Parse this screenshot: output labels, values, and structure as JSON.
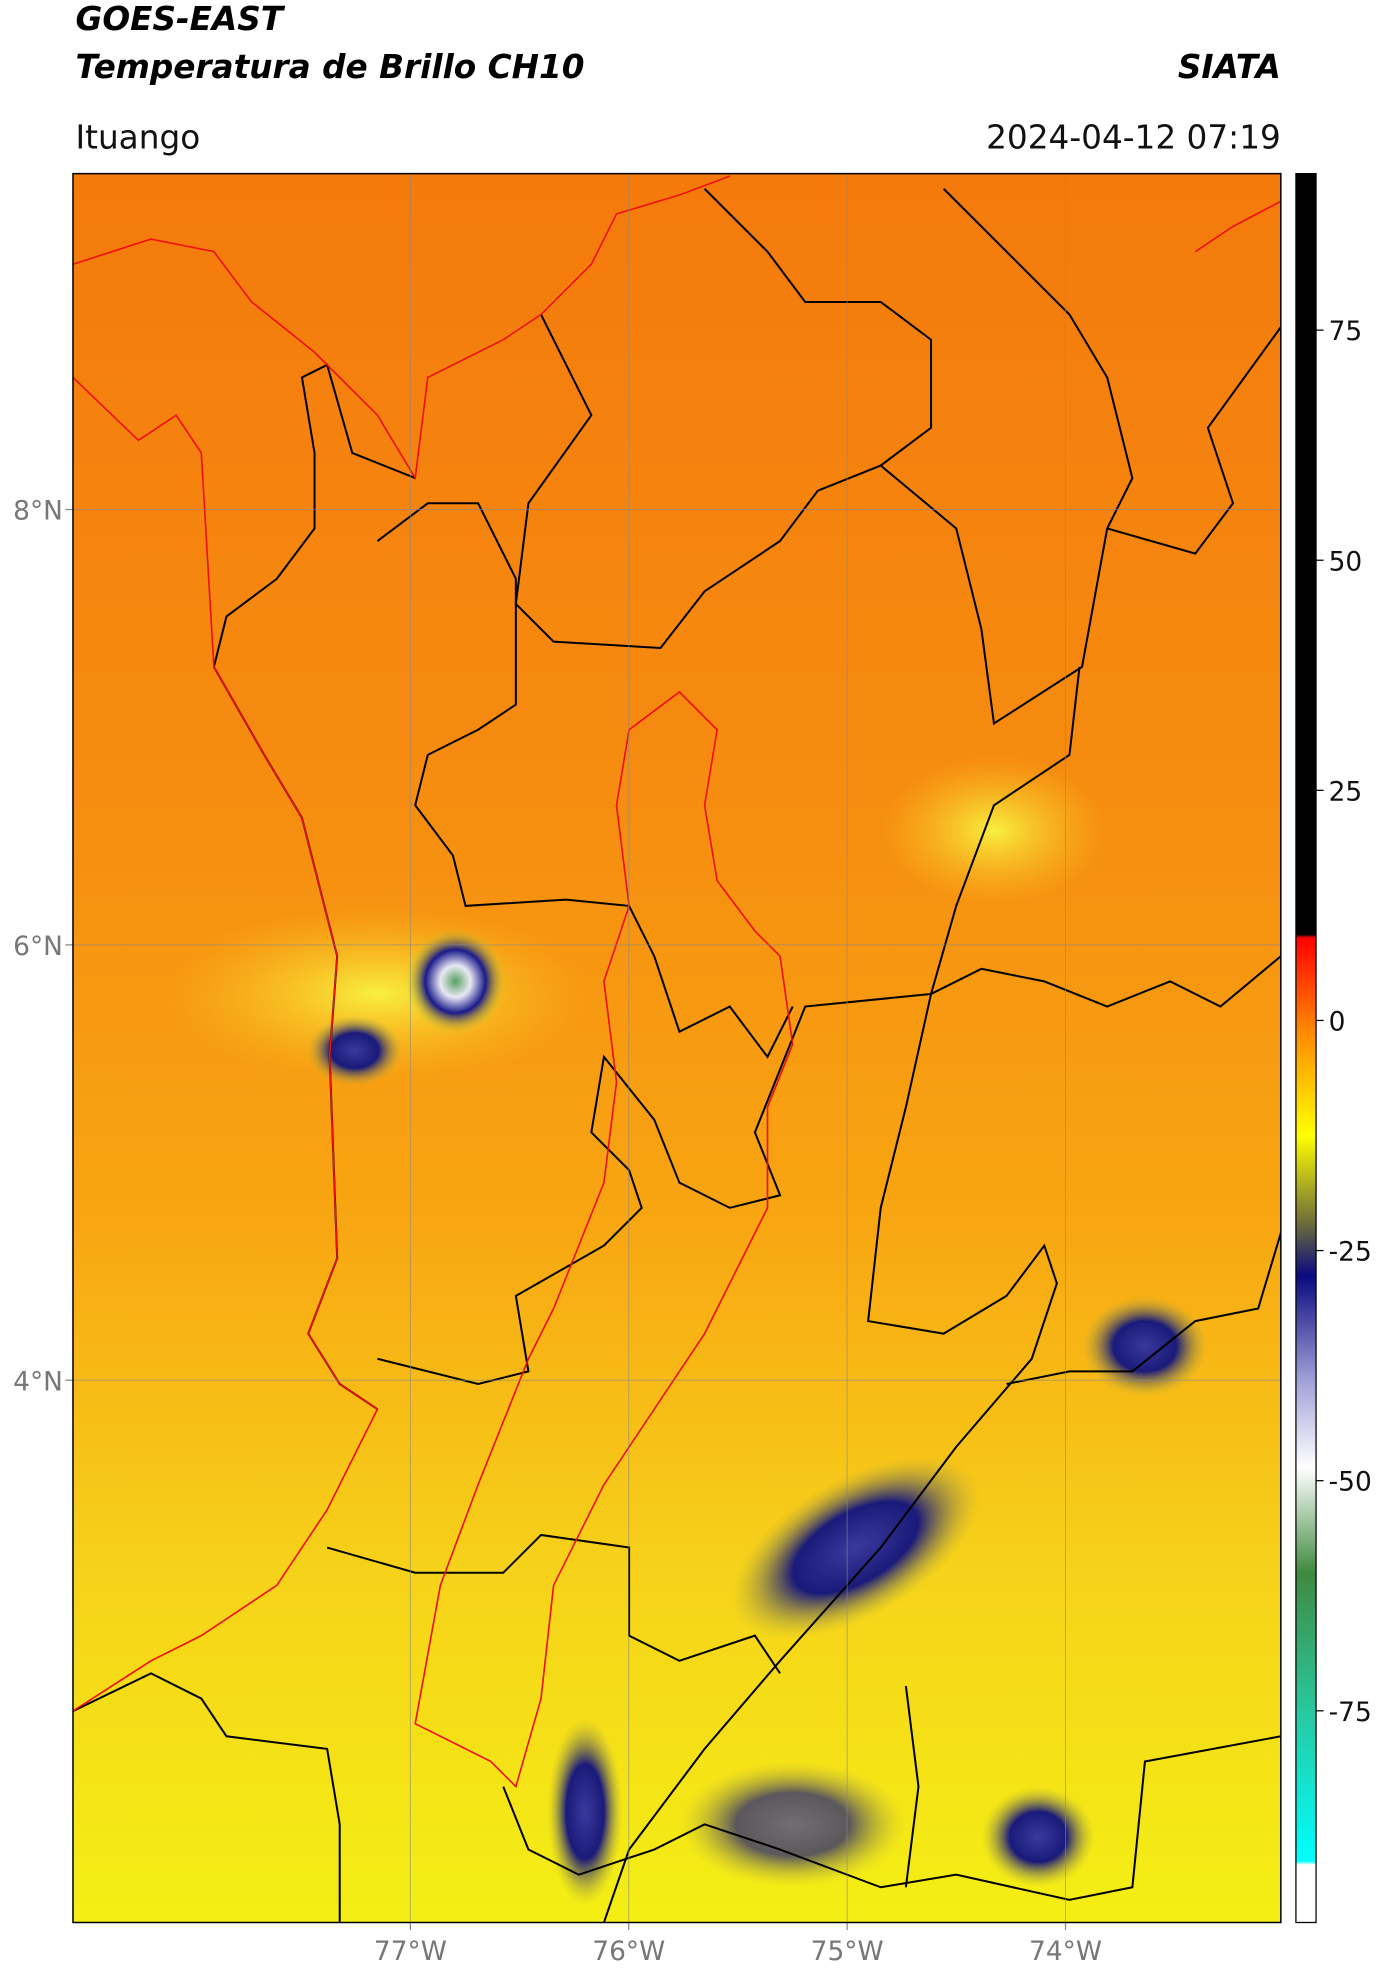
{
  "header": {
    "title_line1": "GOES-EAST",
    "title_line2": "Temperatura de Brillo CH10",
    "brand": "SIATA",
    "location": "Ituango",
    "datetime": "2024-04-12 07:19"
  },
  "map": {
    "lon_range": [
      -78.545,
      -73.014
    ],
    "lat_range": [
      1.509,
      9.543
    ],
    "lon_ticks": [
      {
        "value": -77,
        "label": "77°W"
      },
      {
        "value": -76,
        "label": "76°W"
      },
      {
        "value": -75,
        "label": "75°W"
      },
      {
        "value": -74,
        "label": "74°W"
      }
    ],
    "lat_ticks": [
      {
        "value": 8,
        "label": "8°N"
      },
      {
        "value": 6,
        "label": "6°N"
      },
      {
        "value": 4,
        "label": "4°N"
      }
    ]
  },
  "colorbar": {
    "lim": [
      -98,
      92
    ],
    "ticks": [
      75,
      50,
      25,
      0,
      -25,
      -50,
      -75
    ]
  }
}
